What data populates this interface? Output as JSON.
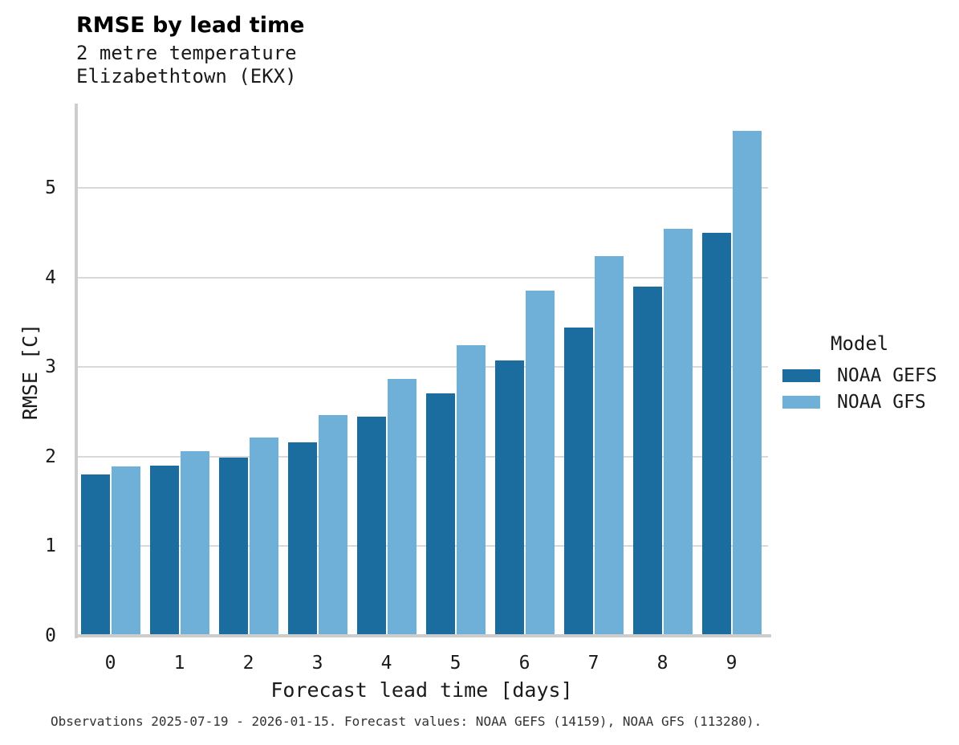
{
  "header": {
    "title": "RMSE by lead time",
    "subtitle_line1": "2 metre temperature",
    "subtitle_line2": "Elizabethtown (EKX)"
  },
  "legend": {
    "title": "Model"
  },
  "footer": {
    "text": "Observations 2025-07-19 - 2026-01-15. Forecast values: NOAA GEFS (14159), NOAA GFS (113280)."
  },
  "colors": {
    "gefs_dark_blue": "#1a6d9e",
    "gfs_light_blue": "#6fb0d8",
    "gridline": "#d9d9d9",
    "axis": "#cdcdcd",
    "text": "#1a1a1a"
  },
  "chart_data": {
    "type": "bar",
    "title": "RMSE by lead time",
    "subtitle": "2 metre temperature, Elizabethtown (EKX)",
    "xlabel": "Forecast lead time [days]",
    "ylabel": "RMSE [C]",
    "categories": [
      0,
      1,
      2,
      3,
      4,
      5,
      6,
      7,
      8,
      9
    ],
    "series": [
      {
        "name": "NOAA GEFS",
        "color": "#1a6d9e",
        "values": [
          1.8,
          1.9,
          1.99,
          2.16,
          2.45,
          2.71,
          3.07,
          3.44,
          3.9,
          4.5
        ]
      },
      {
        "name": "NOAA GFS",
        "color": "#6fb0d8",
        "values": [
          1.89,
          2.06,
          2.21,
          2.46,
          2.87,
          3.24,
          3.85,
          4.24,
          4.54,
          5.64
        ]
      }
    ],
    "ylim": [
      0,
      5.94
    ],
    "yticks": [
      0,
      1,
      2,
      3,
      4,
      5
    ],
    "grid": true,
    "legend_title": "Model",
    "legend_position": "right",
    "caption": "Observations 2025-07-19 - 2026-01-15. Forecast values: NOAA GEFS (14159), NOAA GFS (113280)."
  }
}
